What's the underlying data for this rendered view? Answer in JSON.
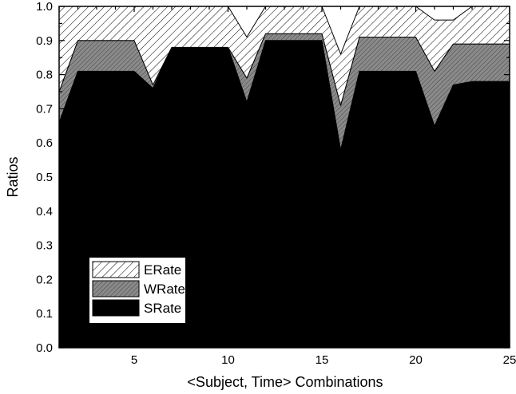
{
  "chart_data": {
    "type": "area",
    "stacked": true,
    "xlabel": "<Subject, Time> Combinations",
    "ylabel": "Ratios",
    "xlim": [
      1,
      25
    ],
    "ylim": [
      0.0,
      1.0
    ],
    "x_ticks": [
      5,
      10,
      15,
      20,
      25
    ],
    "y_ticks": [
      0.0,
      0.1,
      0.2,
      0.3,
      0.4,
      0.5,
      0.6,
      0.7,
      0.8,
      0.9,
      1.0
    ],
    "grid": false,
    "legend_position": "bottom-left",
    "x": [
      1,
      2,
      3,
      4,
      5,
      6,
      7,
      8,
      9,
      10,
      11,
      12,
      13,
      14,
      15,
      16,
      17,
      18,
      19,
      20,
      21,
      22,
      23,
      24,
      25
    ],
    "series": [
      {
        "name": "SRate",
        "pattern": "solid",
        "color": "#000000",
        "values": [
          0.66,
          0.81,
          0.81,
          0.81,
          0.81,
          0.76,
          0.88,
          0.88,
          0.88,
          0.88,
          0.72,
          0.9,
          0.9,
          0.9,
          0.9,
          0.58,
          0.81,
          0.81,
          0.81,
          0.81,
          0.65,
          0.77,
          0.78,
          0.78,
          0.78
        ]
      },
      {
        "name": "WRate",
        "pattern": "dense-hatch",
        "color": "#8a8a8a",
        "values": [
          0.09,
          0.09,
          0.09,
          0.09,
          0.09,
          0.01,
          0.0,
          0.0,
          0.0,
          0.0,
          0.07,
          0.02,
          0.02,
          0.02,
          0.02,
          0.13,
          0.1,
          0.1,
          0.1,
          0.1,
          0.16,
          0.12,
          0.11,
          0.11,
          0.11
        ]
      },
      {
        "name": "ERate",
        "pattern": "sparse-hatch",
        "color": "#ffffff",
        "values": [
          0.25,
          0.1,
          0.1,
          0.1,
          0.1,
          0.23,
          0.12,
          0.12,
          0.12,
          0.12,
          0.12,
          0.08,
          0.08,
          0.08,
          0.08,
          0.15,
          0.09,
          0.09,
          0.09,
          0.09,
          0.15,
          0.07,
          0.11,
          0.11,
          0.11
        ]
      }
    ],
    "legend_order": [
      "ERate",
      "WRate",
      "SRate"
    ]
  }
}
